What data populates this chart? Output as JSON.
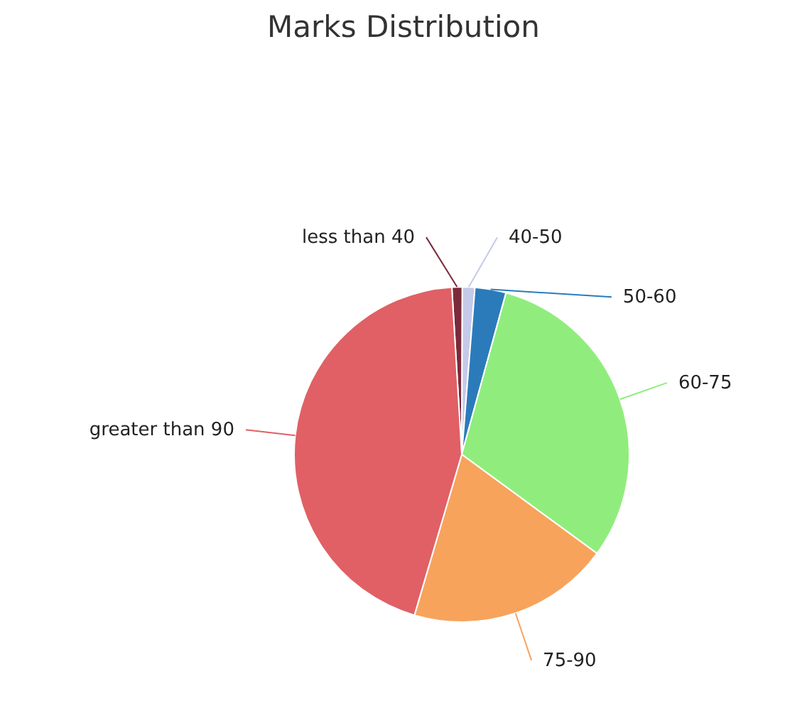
{
  "chart_data": {
    "type": "pie",
    "title": "Marks Distribution",
    "categories": [
      "less than 40",
      "40-50",
      "50-60",
      "60-75",
      "75-90",
      "greater than 90"
    ],
    "values": [
      1,
      1.2,
      3,
      30.8,
      19.5,
      44.5
    ],
    "colors": [
      "#7b2a3b",
      "#c5cae9",
      "#2b7bba",
      "#90ed7d",
      "#f7a35c",
      "#e06065"
    ],
    "legend": false
  }
}
